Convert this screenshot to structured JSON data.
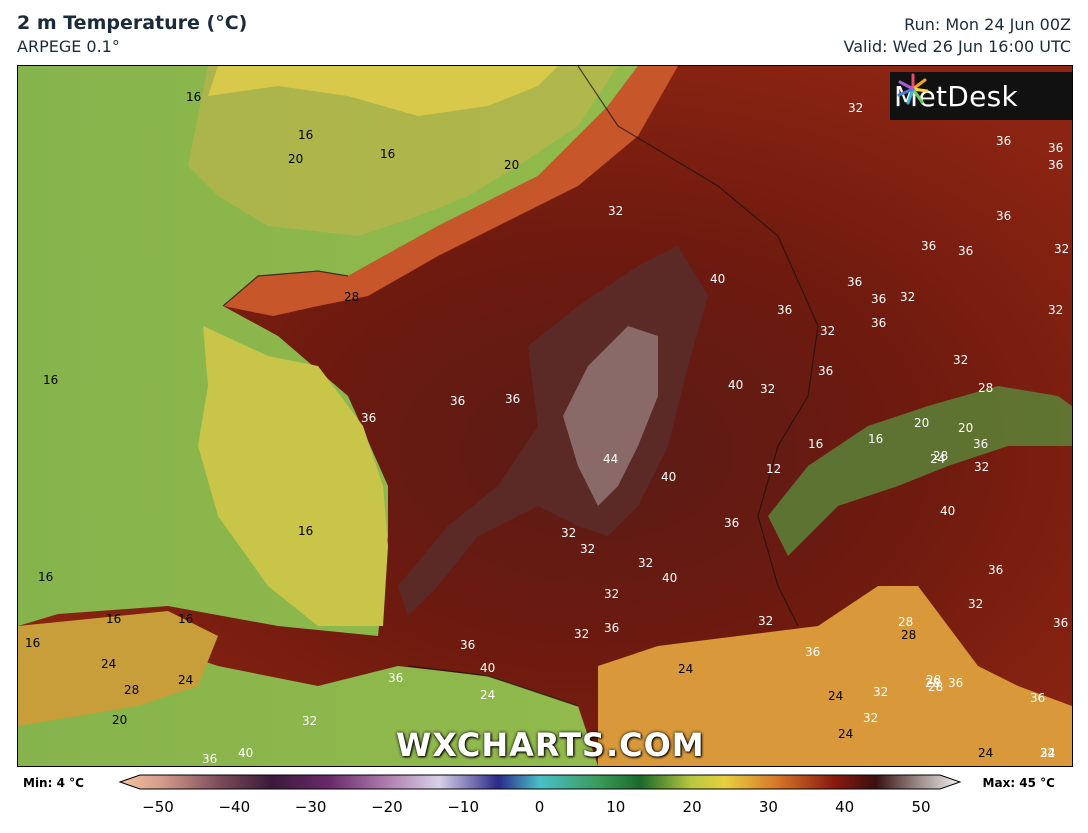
{
  "header": {
    "title": "2 m Temperature (°C)",
    "subtitle": "ARPEGE 0.1°",
    "run": "Run: Mon 24 Jun 00Z",
    "valid": "Valid: Wed 26 Jun 16:00 UTC"
  },
  "logo": {
    "text": "MetDesk",
    "icon": "metdesk-burst-icon"
  },
  "watermark": "WXCHARTS.COM",
  "colorbar": {
    "min_label": "Min: 4 °C",
    "max_label": "Max: 45 °C",
    "ticks": [
      "−50",
      "−40",
      "−30",
      "−20",
      "−10",
      "0",
      "10",
      "20",
      "30",
      "40",
      "50"
    ]
  },
  "contour_labels": [
    "16",
    "16",
    "20",
    "16",
    "20",
    "32",
    "32",
    "36",
    "36",
    "36",
    "36",
    "36",
    "36",
    "32",
    "36",
    "32",
    "28",
    "40",
    "36",
    "36",
    "32",
    "32",
    "36",
    "36",
    "16",
    "36",
    "36",
    "40",
    "32",
    "44",
    "40",
    "36",
    "32",
    "28",
    "20",
    "16",
    "12",
    "16",
    "20",
    "24",
    "28",
    "36",
    "32",
    "16",
    "16",
    "16",
    "16",
    "36",
    "32",
    "32",
    "40",
    "40",
    "32",
    "32",
    "36",
    "32",
    "36",
    "40",
    "16",
    "24",
    "28",
    "24",
    "20",
    "36",
    "24",
    "28",
    "36",
    "32",
    "32",
    "36",
    "28",
    "36",
    "36",
    "28",
    "24",
    "36",
    "32",
    "32",
    "24",
    "24",
    "32",
    "28",
    "24",
    "24",
    "32",
    "28",
    "36",
    "40"
  ],
  "palette": {
    "sea": "#7fb34a",
    "land_hot": "#6d1a10",
    "land_very_hot": "#4a1410",
    "coast_warm": "#d8a13a"
  }
}
